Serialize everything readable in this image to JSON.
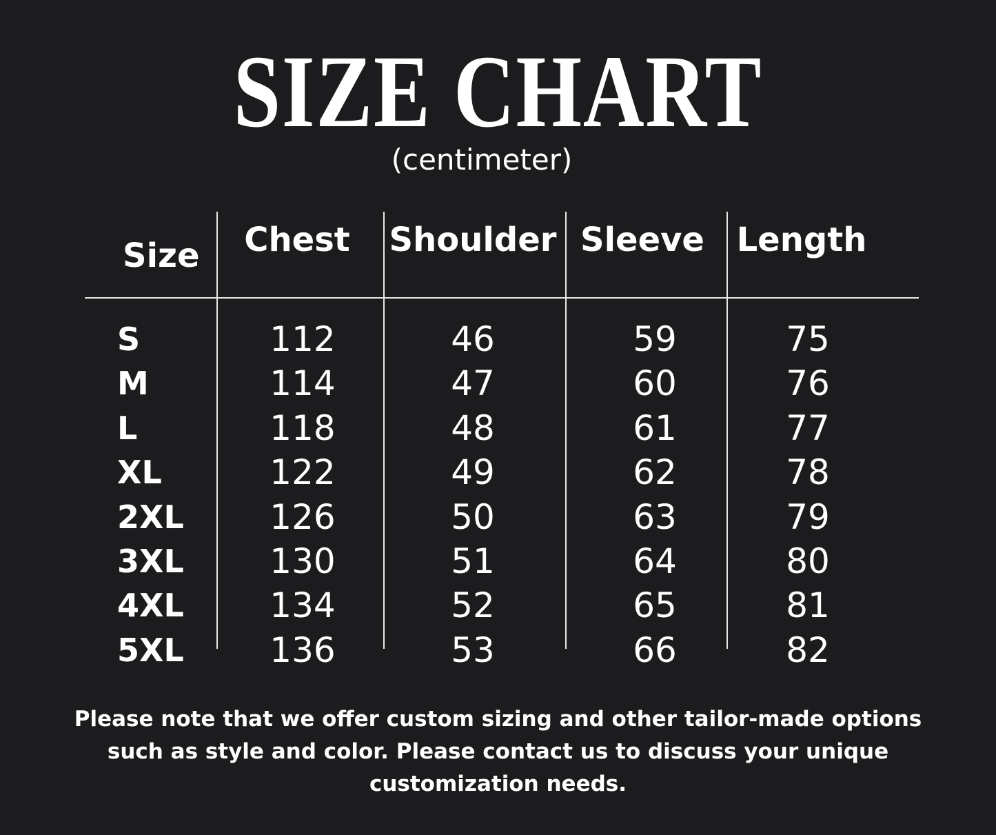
{
  "title": "SIZE CHART",
  "subtitle": "(centimeter)",
  "table": {
    "headers": [
      "Size",
      "Chest",
      "Shoulder",
      "Sleeve",
      "Length"
    ],
    "rows": [
      [
        "S",
        "112",
        "46",
        "59",
        "75"
      ],
      [
        "M",
        "114",
        "47",
        "60",
        "76"
      ],
      [
        "L",
        "118",
        "48",
        "61",
        "77"
      ],
      [
        "XL",
        "122",
        "49",
        "62",
        "78"
      ],
      [
        "2XL",
        "126",
        "50",
        "63",
        "79"
      ],
      [
        "3XL",
        "130",
        "51",
        "64",
        "80"
      ],
      [
        "4XL",
        "134",
        "52",
        "65",
        "81"
      ],
      [
        "5XL",
        "136",
        "53",
        "66",
        "82"
      ]
    ]
  },
  "note": "Please note that we offer custom sizing and other tailor-made options such as style and color. Please contact us to discuss your unique customization needs.",
  "colors": {
    "background": "#1c1b1d",
    "text": "#ffffff"
  }
}
